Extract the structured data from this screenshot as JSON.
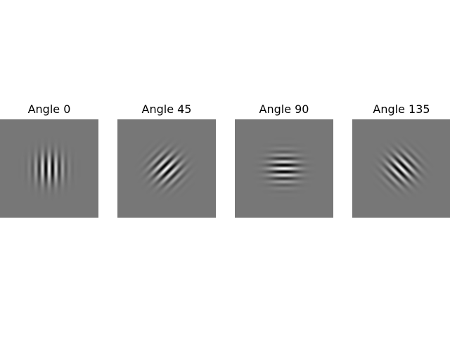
{
  "figure": {
    "background_color": "#ffffff",
    "field_gray": "#777777",
    "panels": [
      {
        "title": "Angle 0",
        "angle_deg": 0
      },
      {
        "title": "Angle 45",
        "angle_deg": 45
      },
      {
        "title": "Angle 90",
        "angle_deg": 90
      },
      {
        "title": "Angle 135",
        "angle_deg": 135
      }
    ]
  }
}
